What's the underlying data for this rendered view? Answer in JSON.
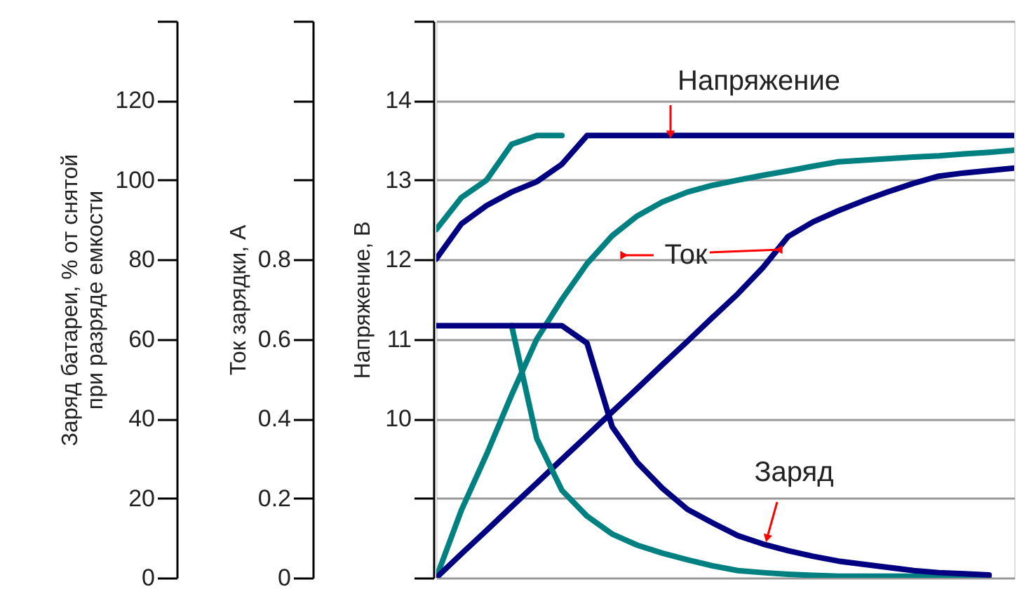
{
  "chart_data": {
    "type": "line",
    "ylabel": "Напряжение, В",
    "y3label": "Ток зарядки, А",
    "y2label": "Заряд батареи, % от снятой\nпри разряде емкости",
    "categories": [
      null,
      null,
      null,
      null,
      null,
      null,
      null,
      null,
      null,
      null,
      null,
      null,
      null,
      null,
      null,
      null,
      null,
      null,
      null,
      null,
      null,
      null,
      null,
      null
    ],
    "tick_labels": "y",
    "ylim": [
      8,
      15
    ],
    "yticks": [
      {
        "value": 8,
        "label": null
      },
      {
        "value": 9,
        "label": null
      },
      10,
      11,
      12,
      13,
      14,
      {
        "value": 15,
        "label": null
      }
    ],
    "y3lim": [
      0,
      1.4
    ],
    "y3ticks": [
      0,
      0.2,
      0.4,
      0.6,
      0.8,
      {
        "value": 1.0,
        "label": null
      },
      {
        "value": 1.2,
        "label": null
      },
      {
        "value": 1.4,
        "label": null
      }
    ],
    "y2lim": [
      0,
      140
    ],
    "y2ticks": [
      0,
      20,
      40,
      60,
      80,
      100,
      120,
      {
        "value": 140,
        "label": null
      }
    ],
    "grid": true,
    "line_style": "solid",
    "series": [
      {
        "color": "#008080",
        "axis": "y",
        "values": [
          12.38,
          12.78,
          13.0,
          13.45,
          13.56,
          13.56,
          null,
          null,
          null,
          null,
          null,
          null,
          null,
          null,
          null,
          null,
          null,
          null,
          null,
          null,
          null,
          null,
          null,
          null
        ]
      },
      {
        "color": "#000080",
        "axis": "y",
        "values": [
          12.01,
          12.45,
          12.68,
          12.85,
          12.98,
          13.2,
          13.56,
          13.56,
          13.56,
          13.56,
          13.56,
          13.56,
          13.56,
          13.56,
          13.56,
          13.56,
          13.56,
          13.56,
          13.56,
          13.56,
          13.56,
          13.56,
          13.56,
          13.56
        ]
      },
      {
        "color": "#008080",
        "axis": "y3",
        "values": [
          null,
          null,
          null,
          0.634,
          0.35,
          0.22,
          0.155,
          0.11,
          0.082,
          0.062,
          0.045,
          0.03,
          0.018,
          0.013,
          0.009,
          0.006,
          0.004,
          0.004,
          0.004,
          0.004,
          0.004,
          0.004,
          0.004,
          null
        ]
      },
      {
        "color": "#000080",
        "axis": "y3",
        "values": [
          0.634,
          0.634,
          0.634,
          0.634,
          0.634,
          0.634,
          0.59,
          0.38,
          0.29,
          0.225,
          0.172,
          0.138,
          0.106,
          0.085,
          0.068,
          0.054,
          0.042,
          0.034,
          0.026,
          0.018,
          0.013,
          0.01,
          0.007,
          null
        ]
      },
      {
        "color": "#008080",
        "axis": "y2",
        "values": [
          0,
          17,
          31,
          46,
          60,
          70,
          79,
          86,
          91,
          94.5,
          97,
          98.7,
          100,
          101.2,
          102.3,
          103.5,
          104.6,
          105,
          105.4,
          105.8,
          106.1,
          106.6,
          107,
          107.5
        ]
      },
      {
        "color": "#000080",
        "axis": "y2",
        "values": [
          0,
          6,
          11.9,
          17.9,
          23.8,
          29.8,
          35.7,
          41.7,
          47.6,
          53.6,
          59.5,
          65.5,
          71.4,
          78,
          85.8,
          89.5,
          92.3,
          94.8,
          97.1,
          99.2,
          101,
          101.8,
          102.4,
          103
        ]
      }
    ],
    "annotations": [
      "Напряжение",
      "Ток",
      "Заряд"
    ]
  }
}
